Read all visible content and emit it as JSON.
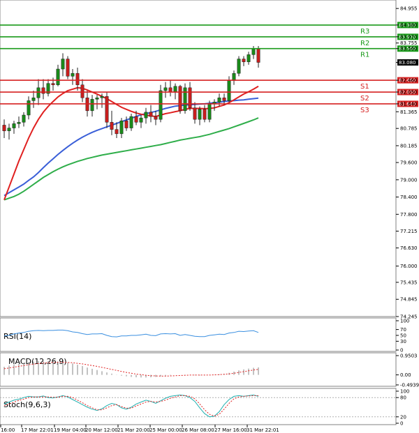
{
  "chart_data": {
    "type": "candlestick",
    "instrument_hint": "price chart with pivot levels and indicators",
    "y_ticks": [
      "84.955",
      "84.380",
      "83.970",
      "83.755",
      "83.560",
      "83.080",
      "82.460",
      "82.050",
      "81.640",
      "81.365",
      "80.785",
      "80.185",
      "79.600",
      "79.000",
      "78.400",
      "77.800",
      "77.215",
      "76.630",
      "76.000",
      "75.435",
      "74.845",
      "74.245"
    ],
    "y_range": [
      74.245,
      85.25
    ],
    "levels": [
      {
        "name": "R3",
        "value": 84.38,
        "label": "84.380",
        "color": "#1a9a1a"
      },
      {
        "name": "R2",
        "value": 83.97,
        "label": "83.970",
        "color": "#1a9a1a"
      },
      {
        "name": "R1",
        "value": 83.56,
        "label": "83.560",
        "color": "#1a9a1a"
      },
      {
        "name": "S1",
        "value": 82.46,
        "label": "82.460",
        "color": "#d62020"
      },
      {
        "name": "S2",
        "value": 82.05,
        "label": "82.050",
        "color": "#d62020"
      },
      {
        "name": "S3",
        "value": 81.64,
        "label": "81.640",
        "color": "#d62020"
      }
    ],
    "last_price": {
      "value": 83.08,
      "label": "83.080"
    },
    "candles": [
      [
        80.9,
        81.1,
        80.45,
        80.7
      ],
      [
        80.7,
        80.95,
        80.4,
        80.8
      ],
      [
        80.8,
        81.05,
        80.6,
        80.95
      ],
      [
        80.95,
        81.2,
        80.8,
        81.0
      ],
      [
        81.0,
        81.35,
        80.85,
        81.25
      ],
      [
        81.25,
        81.9,
        81.1,
        81.75
      ],
      [
        81.75,
        82.1,
        81.5,
        81.85
      ],
      [
        81.85,
        82.5,
        81.6,
        82.2
      ],
      [
        82.2,
        82.5,
        81.8,
        82.0
      ],
      [
        82.0,
        82.5,
        81.9,
        82.35
      ],
      [
        82.35,
        82.55,
        82.1,
        82.3
      ],
      [
        82.3,
        83.0,
        82.25,
        82.85
      ],
      [
        82.85,
        83.4,
        82.6,
        83.2
      ],
      [
        83.2,
        83.3,
        82.5,
        82.6
      ],
      [
        82.6,
        82.85,
        82.3,
        82.7
      ],
      [
        82.7,
        82.9,
        82.1,
        82.3
      ],
      [
        82.3,
        82.5,
        81.7,
        81.85
      ],
      [
        81.85,
        82.1,
        81.2,
        81.4
      ],
      [
        81.4,
        81.95,
        81.2,
        81.8
      ],
      [
        81.8,
        81.95,
        81.45,
        81.85
      ],
      [
        81.85,
        82.0,
        81.5,
        81.9
      ],
      [
        81.9,
        82.05,
        80.8,
        81.0
      ],
      [
        81.0,
        81.4,
        80.55,
        80.75
      ],
      [
        80.75,
        81.0,
        80.45,
        80.6
      ],
      [
        80.6,
        81.15,
        80.45,
        81.05
      ],
      [
        81.05,
        81.2,
        80.7,
        80.8
      ],
      [
        80.8,
        81.3,
        80.7,
        81.2
      ],
      [
        81.2,
        81.4,
        80.9,
        81.0
      ],
      [
        81.0,
        81.25,
        80.8,
        81.15
      ],
      [
        81.15,
        81.5,
        80.95,
        81.35
      ],
      [
        81.35,
        81.6,
        81.0,
        81.2
      ],
      [
        81.2,
        81.4,
        80.9,
        81.1
      ],
      [
        81.1,
        82.3,
        81.0,
        82.1
      ],
      [
        82.1,
        82.4,
        81.85,
        82.2
      ],
      [
        82.2,
        82.45,
        81.9,
        82.05
      ],
      [
        82.05,
        82.35,
        81.8,
        82.25
      ],
      [
        82.25,
        82.3,
        81.3,
        81.4
      ],
      [
        81.4,
        82.35,
        81.3,
        82.2
      ],
      [
        82.2,
        82.4,
        81.4,
        81.5
      ],
      [
        81.5,
        81.7,
        80.95,
        81.1
      ],
      [
        81.1,
        81.55,
        80.9,
        81.45
      ],
      [
        81.45,
        81.6,
        81.0,
        81.1
      ],
      [
        81.1,
        81.75,
        81.0,
        81.65
      ],
      [
        81.65,
        81.8,
        81.4,
        81.7
      ],
      [
        81.7,
        82.0,
        81.55,
        81.85
      ],
      [
        81.85,
        82.0,
        81.6,
        81.75
      ],
      [
        81.75,
        82.6,
        81.7,
        82.45
      ],
      [
        82.45,
        82.8,
        82.3,
        82.7
      ],
      [
        82.7,
        83.3,
        82.6,
        83.2
      ],
      [
        83.2,
        83.3,
        82.95,
        83.1
      ],
      [
        83.1,
        83.45,
        83.0,
        83.35
      ],
      [
        83.35,
        83.65,
        83.2,
        83.55
      ],
      [
        83.55,
        83.65,
        82.9,
        83.08
      ]
    ],
    "ma_red": [
      78.3,
      78.75,
      79.2,
      79.65,
      80.05,
      80.45,
      80.8,
      81.1,
      81.35,
      81.55,
      81.72,
      81.88,
      82.0,
      82.1,
      82.15,
      82.2,
      82.18,
      82.12,
      82.05,
      81.98,
      81.9,
      81.82,
      81.72,
      81.62,
      81.52,
      81.45,
      81.38,
      81.32,
      81.28,
      81.25,
      81.22,
      81.2,
      81.25,
      81.3,
      81.33,
      81.37,
      81.4,
      81.45,
      81.48,
      81.48,
      81.48,
      81.47,
      81.48,
      81.5,
      81.55,
      81.6,
      81.68,
      81.78,
      81.88,
      81.98,
      82.06,
      82.15,
      82.25
    ],
    "ma_blue": [
      78.45,
      78.55,
      78.65,
      78.75,
      78.85,
      78.98,
      79.1,
      79.25,
      79.42,
      79.58,
      79.73,
      79.88,
      80.02,
      80.15,
      80.27,
      80.38,
      80.48,
      80.57,
      80.65,
      80.72,
      80.78,
      80.84,
      80.9,
      80.96,
      81.02,
      81.08,
      81.14,
      81.2,
      81.26,
      81.3,
      81.34,
      81.38,
      81.43,
      81.48,
      81.52,
      81.56,
      81.58,
      81.6,
      81.61,
      81.62,
      81.63,
      81.64,
      81.66,
      81.68,
      81.7,
      81.72,
      81.74,
      81.75,
      81.77,
      81.78,
      81.8,
      81.82,
      81.84
    ],
    "ma_green": [
      78.3,
      78.36,
      78.42,
      78.5,
      78.6,
      78.72,
      78.84,
      78.96,
      79.08,
      79.18,
      79.28,
      79.37,
      79.45,
      79.52,
      79.58,
      79.64,
      79.69,
      79.74,
      79.78,
      79.82,
      79.86,
      79.89,
      79.92,
      79.95,
      79.98,
      80.01,
      80.04,
      80.07,
      80.1,
      80.13,
      80.16,
      80.19,
      80.22,
      80.26,
      80.3,
      80.34,
      80.38,
      80.41,
      80.44,
      80.47,
      80.5,
      80.54,
      80.58,
      80.63,
      80.68,
      80.73,
      80.78,
      80.84,
      80.9,
      80.96,
      81.02,
      81.08,
      81.15
    ],
    "x_labels": [
      "r 16:00",
      "17 Mar 22:01",
      "19 Mar 04:00",
      "20 Mar 12:00",
      "21 Mar 20:00",
      "25 Mar 00:00",
      "26 Mar 08:00",
      "27 Mar 16:00",
      "31 Mar 22:01"
    ],
    "rsi": {
      "title": "RSI(14)",
      "ticks": [
        "100",
        "70",
        "50",
        "30",
        "0"
      ],
      "values": [
        48,
        50,
        55,
        58,
        60,
        64,
        66,
        67,
        66,
        67,
        67,
        68,
        68,
        66,
        62,
        60,
        56,
        53,
        55,
        55,
        56,
        50,
        46,
        45,
        48,
        48,
        50,
        50,
        52,
        54,
        50,
        49,
        55,
        56,
        55,
        56,
        50,
        53,
        50,
        47,
        46,
        46,
        50,
        52,
        54,
        53,
        58,
        60,
        64,
        63,
        65,
        66,
        60
      ]
    },
    "macd": {
      "title": "MACD(12,26,9)",
      "ticks": [
        "0.9503",
        "0.00",
        "-0.4939"
      ],
      "hist": [
        0.4,
        0.46,
        0.52,
        0.56,
        0.6,
        0.64,
        0.66,
        0.68,
        0.68,
        0.68,
        0.67,
        0.66,
        0.64,
        0.6,
        0.56,
        0.5,
        0.44,
        0.36,
        0.3,
        0.24,
        0.18,
        0.12,
        0.06,
        0.01,
        -0.04,
        -0.07,
        -0.1,
        -0.12,
        -0.13,
        -0.13,
        -0.12,
        -0.1,
        -0.07,
        -0.04,
        -0.02,
        0.0,
        0.0,
        0.01,
        0.0,
        -0.02,
        -0.03,
        -0.03,
        -0.01,
        0.01,
        0.03,
        0.05,
        0.1,
        0.16,
        0.22,
        0.27,
        0.31,
        0.35,
        0.37
      ],
      "signal": [
        0.3,
        0.34,
        0.38,
        0.42,
        0.46,
        0.5,
        0.53,
        0.56,
        0.58,
        0.6,
        0.61,
        0.62,
        0.62,
        0.61,
        0.6,
        0.57,
        0.54,
        0.5,
        0.46,
        0.42,
        0.37,
        0.32,
        0.27,
        0.22,
        0.17,
        0.12,
        0.08,
        0.04,
        0.01,
        -0.02,
        -0.04,
        -0.05,
        -0.06,
        -0.06,
        -0.05,
        -0.04,
        -0.03,
        -0.02,
        -0.01,
        -0.01,
        -0.01,
        -0.01,
        -0.01,
        0.0,
        0.01,
        0.03,
        0.05,
        0.08,
        0.12,
        0.16,
        0.2,
        0.24,
        0.27
      ]
    },
    "stoch": {
      "title": "Stoch(9,6,3)",
      "ticks": [
        "100",
        "80",
        "20",
        "0"
      ],
      "main": [
        60,
        66,
        72,
        75,
        80,
        84,
        82,
        82,
        85,
        80,
        79,
        82,
        86,
        82,
        74,
        66,
        58,
        50,
        44,
        40,
        45,
        55,
        62,
        58,
        48,
        44,
        50,
        60,
        66,
        72,
        68,
        62,
        70,
        78,
        84,
        86,
        88,
        86,
        80,
        68,
        48,
        30,
        20,
        22,
        36,
        58,
        74,
        84,
        86,
        84,
        86,
        88,
        84
      ],
      "signal": [
        55,
        60,
        66,
        71,
        75,
        80,
        82,
        82,
        82,
        82,
        81,
        81,
        84,
        84,
        80,
        72,
        64,
        55,
        48,
        42,
        42,
        48,
        55,
        58,
        52,
        47,
        47,
        54,
        60,
        66,
        68,
        66,
        68,
        72,
        78,
        82,
        86,
        86,
        84,
        76,
        60,
        42,
        28,
        22,
        28,
        44,
        62,
        76,
        82,
        84,
        85,
        86,
        86
      ]
    }
  }
}
